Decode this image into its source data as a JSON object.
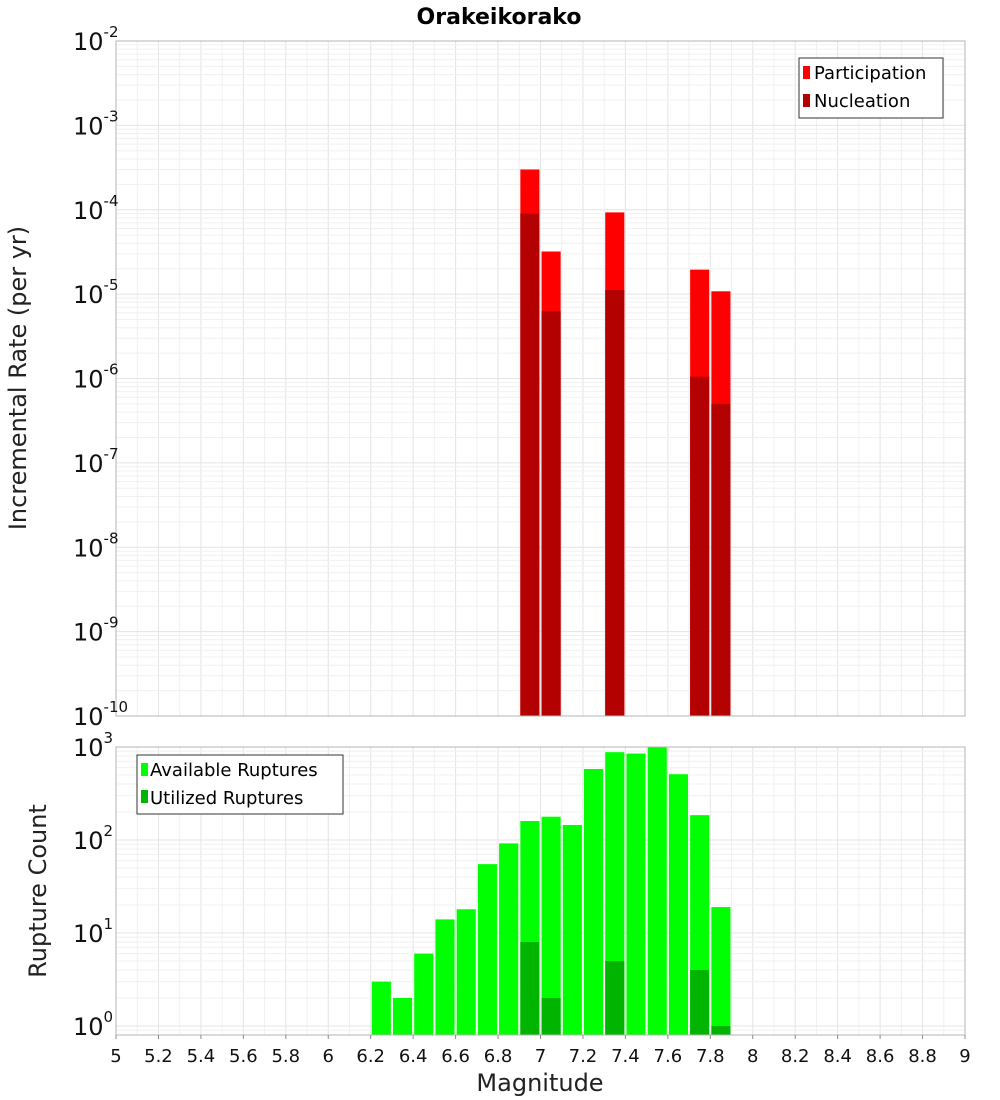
{
  "chart_data": [
    {
      "type": "bar",
      "title": "Orakeikorako",
      "ylabel": "Incremental Rate (per yr)",
      "xlabel": "",
      "xlim": [
        5,
        9
      ],
      "ylim": [
        1e-10,
        0.01
      ],
      "yscale": "log",
      "y_tick_exponents": [
        -10,
        -9,
        -8,
        -7,
        -6,
        -5,
        -4,
        -3,
        -2
      ],
      "grid": true,
      "legend_position": "top-right",
      "bar_width": 0.09,
      "series": [
        {
          "name": "Participation",
          "color": "#ff0000",
          "points": [
            {
              "x": 6.95,
              "y": 0.0003
            },
            {
              "x": 7.05,
              "y": 3.2e-05
            },
            {
              "x": 7.35,
              "y": 9.3e-05
            },
            {
              "x": 7.75,
              "y": 1.95e-05
            },
            {
              "x": 7.85,
              "y": 1.08e-05
            }
          ]
        },
        {
          "name": "Nucleation",
          "color": "#b30000",
          "points": [
            {
              "x": 6.95,
              "y": 9e-05
            },
            {
              "x": 7.05,
              "y": 6.3e-06
            },
            {
              "x": 7.35,
              "y": 1.12e-05
            },
            {
              "x": 7.75,
              "y": 1.05e-06
            },
            {
              "x": 7.85,
              "y": 5e-07
            }
          ]
        }
      ]
    },
    {
      "type": "bar",
      "title": "",
      "ylabel": "Rupture Count",
      "xlabel": "Magnitude",
      "xlim": [
        5,
        9
      ],
      "ylim": [
        0.8,
        1000
      ],
      "yscale": "log",
      "y_tick_exponents": [
        0,
        1,
        2,
        3
      ],
      "x_ticks": [
        "5",
        "5.2",
        "5.4",
        "5.6",
        "5.8",
        "6",
        "6.2",
        "6.4",
        "6.6",
        "6.8",
        "7",
        "7.2",
        "7.4",
        "7.6",
        "7.8",
        "8",
        "8.2",
        "8.4",
        "8.6",
        "8.8",
        "9"
      ],
      "grid": true,
      "legend_position": "top-left",
      "bar_width": 0.09,
      "series": [
        {
          "name": "Available Ruptures",
          "color": "#00ff00",
          "points": [
            {
              "x": 6.25,
              "y": 3
            },
            {
              "x": 6.35,
              "y": 2
            },
            {
              "x": 6.45,
              "y": 6
            },
            {
              "x": 6.55,
              "y": 14
            },
            {
              "x": 6.65,
              "y": 18
            },
            {
              "x": 6.75,
              "y": 55
            },
            {
              "x": 6.85,
              "y": 92
            },
            {
              "x": 6.95,
              "y": 160
            },
            {
              "x": 7.05,
              "y": 178
            },
            {
              "x": 7.15,
              "y": 145
            },
            {
              "x": 7.25,
              "y": 580
            },
            {
              "x": 7.35,
              "y": 880
            },
            {
              "x": 7.45,
              "y": 850
            },
            {
              "x": 7.55,
              "y": 990
            },
            {
              "x": 7.65,
              "y": 510
            },
            {
              "x": 7.75,
              "y": 185
            },
            {
              "x": 7.85,
              "y": 19
            }
          ]
        },
        {
          "name": "Utilized Ruptures",
          "color": "#00b400",
          "points": [
            {
              "x": 6.95,
              "y": 8
            },
            {
              "x": 7.05,
              "y": 2
            },
            {
              "x": 7.35,
              "y": 5
            },
            {
              "x": 7.75,
              "y": 4
            },
            {
              "x": 7.85,
              "y": 1
            }
          ]
        }
      ]
    }
  ]
}
